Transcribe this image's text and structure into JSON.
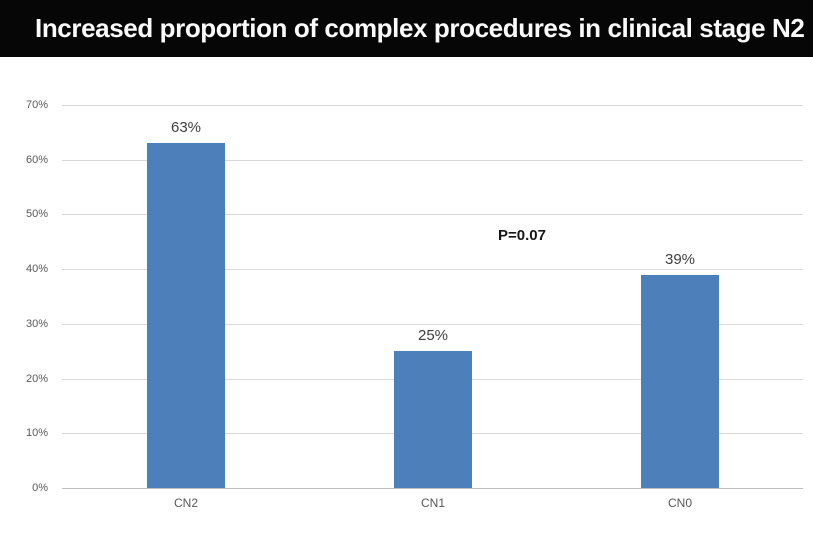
{
  "slide": {
    "title": "Increased proportion of complex procedures in clinical stage N2",
    "title_bar_bg": "#060606",
    "title_color": "#fbfbfb"
  },
  "chart_data": {
    "type": "bar",
    "title": "Increased proportion of complex procedures in clinical stage N2",
    "categories": [
      "CN2",
      "CN1",
      "CN0"
    ],
    "values": [
      63,
      25,
      39
    ],
    "value_labels": [
      "63%",
      "25%",
      "39%"
    ],
    "y_tick_labels": [
      "0%",
      "10%",
      "20%",
      "30%",
      "40%",
      "50%",
      "60%",
      "70%"
    ],
    "ylim": [
      0,
      70
    ],
    "y_tick_step": 10,
    "grid": true,
    "legend": "none",
    "annotation": {
      "text": "P=0.07"
    },
    "xlabel": "",
    "ylabel": "",
    "bar_color": "#4D7FBB",
    "gridline_color": "#D9D9D9",
    "axis_line_color": "#BFBFBF",
    "tick_label_color": "#595959",
    "value_label_color": "#3F3F3F",
    "annotation_color": "#161616"
  }
}
